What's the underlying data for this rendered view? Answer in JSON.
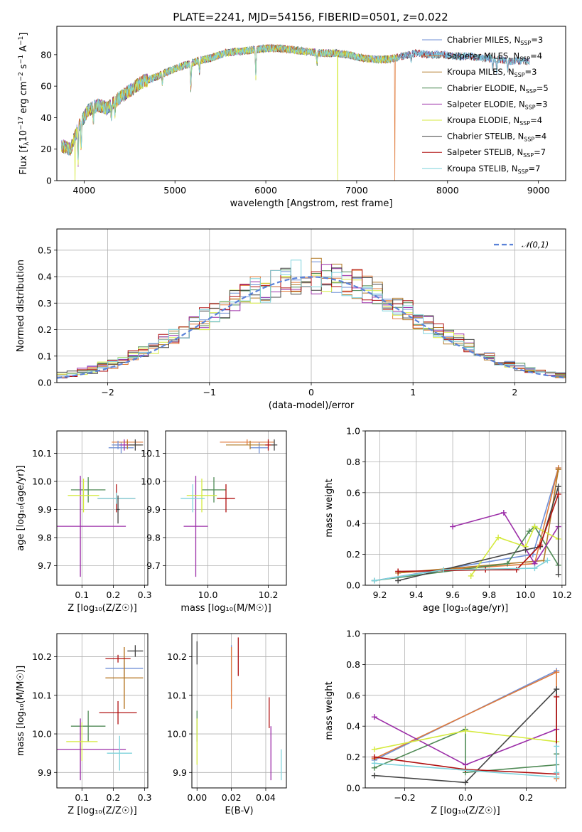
{
  "figure_title": "PLATE=2241, MJD=54156, FIBERID=0501, z=0.022",
  "models": [
    {
      "name": "Chabrier MILES",
      "nssp": "3",
      "color": "#6f8fd6"
    },
    {
      "name": "Salpeter MILES",
      "nssp": "4",
      "color": "#e07a3a"
    },
    {
      "name": "Kroupa MILES",
      "nssp": "3",
      "color": "#b37b2a"
    },
    {
      "name": "Chabrier ELODIE",
      "nssp": "5",
      "color": "#4f8a55"
    },
    {
      "name": "Salpeter ELODIE",
      "nssp": "3",
      "color": "#9c2ea8"
    },
    {
      "name": "Kroupa ELODIE",
      "nssp": "4",
      "color": "#d5ea3f"
    },
    {
      "name": "Chabrier STELIB",
      "nssp": "4",
      "color": "#444444"
    },
    {
      "name": "Salpeter STELIB",
      "nssp": "7",
      "color": "#b01010"
    },
    {
      "name": "Kroupa STELIB",
      "nssp": "7",
      "color": "#7fd3dc"
    }
  ],
  "chart_data": [
    {
      "id": "spectrum",
      "type": "line",
      "xlabel": "wavelength [Angstrom, rest frame]",
      "ylabel_pre": "Flux [f",
      "ylabel_sub1": "λ",
      "ylabel_mid": "10",
      "ylabel_sup1": "−17",
      "ylabel_post": " erg cm",
      "ylabel_sup2": "−2",
      "ylabel_post2": " s",
      "ylabel_sup3": "−1",
      "ylabel_post3": " A",
      "ylabel_sup4": "−1",
      "ylabel_end": "]",
      "xlim": [
        3700,
        9300
      ],
      "ylim": [
        0,
        98
      ],
      "xticks": [
        4000,
        5000,
        6000,
        7000,
        8000,
        9000
      ],
      "yticks": [
        0,
        20,
        40,
        60,
        80
      ],
      "continuum": {
        "x": [
          3750,
          3850,
          3950,
          4050,
          4150,
          4250,
          4350,
          4500,
          4650,
          4800,
          4950,
          5100,
          5250,
          5400,
          5550,
          5700,
          5850,
          6000,
          6150,
          6300,
          6450,
          6600,
          6750,
          6900,
          7050,
          7200,
          7350,
          7500,
          7650,
          7800,
          7950,
          8100,
          8250,
          8400,
          8550,
          8700,
          8850
        ],
        "y": [
          22,
          20,
          36,
          45,
          48,
          46,
          51,
          57,
          63,
          66,
          70,
          73,
          76,
          78,
          81,
          82,
          83,
          84,
          84,
          83,
          82,
          81,
          81,
          80,
          78,
          77,
          77,
          79,
          81,
          80,
          80,
          79,
          79,
          78,
          77,
          76,
          76
        ]
      },
      "absorption_dips": [
        {
          "x": 3934,
          "depth": 22
        },
        {
          "x": 3968,
          "depth": 18
        },
        {
          "x": 4102,
          "depth": 8
        },
        {
          "x": 4300,
          "depth": 9
        },
        {
          "x": 4340,
          "depth": 7
        },
        {
          "x": 4861,
          "depth": 6
        },
        {
          "x": 5175,
          "depth": 16
        },
        {
          "x": 5270,
          "depth": 7
        },
        {
          "x": 5890,
          "depth": 18
        },
        {
          "x": 6563,
          "depth": 7
        },
        {
          "x": 7600,
          "depth": 5
        },
        {
          "x": 8498,
          "depth": 6
        },
        {
          "x": 8542,
          "depth": 8
        },
        {
          "x": 8662,
          "depth": 7
        }
      ],
      "spikes": [
        {
          "x": 3900,
          "model": 5
        },
        {
          "x": 6790,
          "model": 5
        },
        {
          "x": 7420,
          "model": 1
        }
      ],
      "legend_loc": "upper right"
    },
    {
      "id": "residuals",
      "type": "histogram",
      "xlabel": "(data-model)/error",
      "ylabel": "Normed distribution",
      "xlim": [
        -2.5,
        2.5
      ],
      "ylim": [
        0,
        0.58
      ],
      "xticks": [
        -2,
        -1,
        0,
        1,
        2
      ],
      "yticks": [
        0.0,
        0.1,
        0.2,
        0.3,
        0.4,
        0.5
      ],
      "bin_width": 0.1,
      "reference_label": "𝒩(0,1)",
      "legend_loc": "upper right"
    },
    {
      "id": "age_vs_z",
      "type": "errorbar",
      "xlabel": "Z [log₁₀(Z/Z☉)]",
      "ylabel": "age  [log₁₀(age/yr)]",
      "xlim": [
        0.02,
        0.31
      ],
      "ylim": [
        9.63,
        10.18
      ],
      "xticks": [
        0.1,
        0.2,
        0.3
      ],
      "yticks": [
        9.7,
        9.8,
        9.9,
        10.0,
        10.1
      ],
      "points": [
        {
          "m": 0,
          "x": 0.225,
          "y": 10.12,
          "xe": 0.04,
          "ye": 0.02
        },
        {
          "m": 1,
          "x": 0.245,
          "y": 10.14,
          "xe": 0.05,
          "ye": 0.01
        },
        {
          "m": 2,
          "x": 0.245,
          "y": 10.13,
          "xe": 0.045,
          "ye": 0.015
        },
        {
          "m": 3,
          "x": 0.12,
          "y": 9.97,
          "xe": 0.055,
          "ye": 0.045
        },
        {
          "m": 4,
          "x": 0.095,
          "y": 9.84,
          "xe": 0.145,
          "ye": 0.18
        },
        {
          "m": 5,
          "x": 0.105,
          "y": 9.95,
          "xe": 0.05,
          "ye": 0.06
        },
        {
          "m": 6,
          "x": 0.27,
          "y": 10.13,
          "xe": 0.025,
          "ye": 0.02
        },
        {
          "m": 7,
          "x": 0.21,
          "y": 9.94,
          "xe": 0.06,
          "ye": 0.05
        },
        {
          "m": 8,
          "x": 0.21,
          "y": 9.94,
          "xe": 0.06,
          "ye": 0.02
        },
        {
          "m": 0,
          "x": 0.215,
          "y": 10.13,
          "xe": 0.02,
          "ye": 0.015
        },
        {
          "m": 4,
          "x": 0.235,
          "y": 10.13,
          "xe": 0.015,
          "ye": 0.02
        },
        {
          "m": 6,
          "x": 0.215,
          "y": 9.9,
          "xe": 0.005,
          "ye": 0.05
        }
      ]
    },
    {
      "id": "age_vs_mass",
      "type": "errorbar",
      "xlabel": "mass [log₁₀(M/M☉)]",
      "ylabel": "",
      "xlim": [
        9.86,
        10.26
      ],
      "ylim": [
        9.63,
        10.18
      ],
      "xticks": [
        10.0,
        10.2
      ],
      "yticks": [
        9.7,
        9.8,
        9.9,
        10.0,
        10.1
      ],
      "points": [
        {
          "m": 0,
          "x": 10.17,
          "y": 10.12,
          "xe": 0.03,
          "ye": 0.02
        },
        {
          "m": 1,
          "x": 10.13,
          "y": 10.14,
          "xe": 0.09,
          "ye": 0.01
        },
        {
          "m": 2,
          "x": 10.14,
          "y": 10.13,
          "xe": 0.08,
          "ye": 0.015
        },
        {
          "m": 3,
          "x": 10.02,
          "y": 9.97,
          "xe": 0.04,
          "ye": 0.045
        },
        {
          "m": 4,
          "x": 9.96,
          "y": 9.84,
          "xe": 0.04,
          "ye": 0.18
        },
        {
          "m": 5,
          "x": 9.98,
          "y": 9.95,
          "xe": 0.05,
          "ye": 0.06
        },
        {
          "m": 6,
          "x": 10.22,
          "y": 10.13,
          "xe": 0.01,
          "ye": 0.02
        },
        {
          "m": 7,
          "x": 10.06,
          "y": 9.94,
          "xe": 0.03,
          "ye": 0.05
        },
        {
          "m": 8,
          "x": 9.95,
          "y": 9.94,
          "xe": 0.04,
          "ye": 0.05
        },
        {
          "m": 7,
          "x": 10.2,
          "y": 10.13,
          "xe": 0.01,
          "ye": 0.02
        }
      ]
    },
    {
      "id": "mass_weight_vs_age",
      "type": "line",
      "xlabel": "age  [log₁₀(age/yr)]",
      "ylabel": "mass weight",
      "xlim": [
        9.12,
        10.22
      ],
      "ylim": [
        0,
        1
      ],
      "xticks": [
        9.2,
        9.4,
        9.6,
        9.8,
        10.0,
        10.2
      ],
      "yticks": [
        0.0,
        0.2,
        0.4,
        0.6,
        0.8,
        1.0
      ],
      "series": [
        {
          "m": 0,
          "x": [
            9.17,
            10.04,
            10.18
          ],
          "y": [
            0.03,
            0.2,
            0.76
          ]
        },
        {
          "m": 1,
          "x": [
            9.3,
            10.05,
            10.18
          ],
          "y": [
            0.08,
            0.14,
            0.76
          ]
        },
        {
          "m": 2,
          "x": [
            9.3,
            10.1,
            10.18
          ],
          "y": [
            0.08,
            0.16,
            0.75
          ]
        },
        {
          "m": 3,
          "x": [
            9.17,
            9.9,
            10.02,
            10.05,
            10.18
          ],
          "y": [
            0.03,
            0.14,
            0.35,
            0.38,
            0.13
          ]
        },
        {
          "m": 4,
          "x": [
            9.6,
            9.88,
            10.05,
            10.18
          ],
          "y": [
            0.38,
            0.47,
            0.14,
            0.38
          ]
        },
        {
          "m": 5,
          "x": [
            9.7,
            9.85,
            10.0,
            10.05,
            10.18
          ],
          "y": [
            0.06,
            0.31,
            0.25,
            0.38,
            0.3
          ]
        },
        {
          "m": 6,
          "x": [
            9.3,
            10.0,
            10.08,
            10.18,
            10.18
          ],
          "y": [
            0.03,
            0.23,
            0.25,
            0.64,
            0.07
          ]
        },
        {
          "m": 7,
          "x": [
            9.3,
            9.78,
            9.95,
            10.08,
            10.18
          ],
          "y": [
            0.09,
            0.1,
            0.1,
            0.26,
            0.59
          ]
        },
        {
          "m": 8,
          "x": [
            9.17,
            9.55,
            10.05,
            10.12
          ],
          "y": [
            0.03,
            0.1,
            0.11,
            0.16
          ]
        }
      ]
    },
    {
      "id": "mass_vs_z",
      "type": "errorbar",
      "xlabel": "Z [log₁₀(Z/Z☉)]",
      "ylabel": "mass [log₁₀(M/M☉)]",
      "xlim": [
        0.02,
        0.31
      ],
      "ylim": [
        9.86,
        10.26
      ],
      "xticks": [
        0.1,
        0.2,
        0.3
      ],
      "yticks": [
        9.9,
        10.0,
        10.1,
        10.2
      ],
      "points": [
        {
          "m": 0,
          "x": 0.235,
          "y": 10.17,
          "xe": 0.06,
          "ye": 0.02
        },
        {
          "m": 1,
          "x": 0.235,
          "y": 10.145,
          "xe": 0.06,
          "ye": 0.08
        },
        {
          "m": 2,
          "x": 0.235,
          "y": 10.145,
          "xe": 0.06,
          "ye": 0.08
        },
        {
          "m": 3,
          "x": 0.12,
          "y": 10.02,
          "xe": 0.055,
          "ye": 0.04
        },
        {
          "m": 4,
          "x": 0.095,
          "y": 9.96,
          "xe": 0.145,
          "ye": 0.08
        },
        {
          "m": 5,
          "x": 0.1,
          "y": 9.98,
          "xe": 0.05,
          "ye": 0.05
        },
        {
          "m": 6,
          "x": 0.27,
          "y": 10.215,
          "xe": 0.025,
          "ye": 0.015
        },
        {
          "m": 7,
          "x": 0.215,
          "y": 10.055,
          "xe": 0.06,
          "ye": 0.03
        },
        {
          "m": 8,
          "x": 0.22,
          "y": 9.95,
          "xe": 0.04,
          "ye": 0.045
        },
        {
          "m": 7,
          "x": 0.215,
          "y": 10.195,
          "xe": 0.04,
          "ye": 0.01
        }
      ]
    },
    {
      "id": "mass_vs_ebv",
      "type": "errorbar",
      "xlabel": "E(B-V)",
      "ylabel": "",
      "xlim": [
        -0.003,
        0.052
      ],
      "ylim": [
        9.86,
        10.26
      ],
      "xticks": [
        0.0,
        0.02,
        0.04
      ],
      "yticks": [
        9.9,
        10.0,
        10.1,
        10.2
      ],
      "points": [
        {
          "m": 0,
          "x": 0.02,
          "y": 10.17,
          "xe": 0.0,
          "ye": 0.06
        },
        {
          "m": 1,
          "x": 0.02,
          "y": 10.145,
          "xe": 0.0,
          "ye": 0.08
        },
        {
          "m": 3,
          "x": 0.0,
          "y": 10.02,
          "xe": 0.0,
          "ye": 0.04
        },
        {
          "m": 4,
          "x": 0.043,
          "y": 9.95,
          "xe": 0.0,
          "ye": 0.07
        },
        {
          "m": 5,
          "x": 0.0,
          "y": 9.98,
          "xe": 0.0,
          "ye": 0.06
        },
        {
          "m": 6,
          "x": 0.0,
          "y": 10.21,
          "xe": 0.0,
          "ye": 0.03
        },
        {
          "m": 7,
          "x": 0.042,
          "y": 10.055,
          "xe": 0.0,
          "ye": 0.04
        },
        {
          "m": 8,
          "x": 0.049,
          "y": 9.92,
          "xe": 0.0,
          "ye": 0.04
        },
        {
          "m": 7,
          "x": 0.024,
          "y": 10.2,
          "xe": 0.0,
          "ye": 0.05
        }
      ]
    },
    {
      "id": "mass_weight_vs_z",
      "type": "line",
      "xlabel": "Z [log₁₀(Z/Z☉)]",
      "ylabel": "mass weight",
      "xlim": [
        -0.33,
        0.33
      ],
      "ylim": [
        0,
        1
      ],
      "xticks": [
        -0.2,
        0.0,
        0.2
      ],
      "yticks": [
        0.0,
        0.2,
        0.4,
        0.6,
        0.8,
        1.0
      ],
      "series": [
        {
          "m": 0,
          "x": [
            -0.3,
            0.3,
            0.3
          ],
          "y": [
            0.18,
            0.76,
            0.07
          ]
        },
        {
          "m": 1,
          "x": [
            -0.3,
            0.3,
            0.3
          ],
          "y": [
            0.19,
            0.75,
            0.06
          ]
        },
        {
          "m": 3,
          "x": [
            -0.3,
            0.0,
            0.0,
            0.3,
            0.3
          ],
          "y": [
            0.13,
            0.38,
            0.1,
            0.15,
            0.22
          ]
        },
        {
          "m": 4,
          "x": [
            -0.3,
            0.0,
            0.3
          ],
          "y": [
            0.46,
            0.15,
            0.38
          ]
        },
        {
          "m": 5,
          "x": [
            -0.3,
            0.0,
            0.3
          ],
          "y": [
            0.25,
            0.37,
            0.3
          ]
        },
        {
          "m": 6,
          "x": [
            -0.3,
            0.0,
            0.3,
            0.3
          ],
          "y": [
            0.08,
            0.035,
            0.64,
            0.07
          ]
        },
        {
          "m": 7,
          "x": [
            -0.3,
            0.0,
            0.3,
            0.3
          ],
          "y": [
            0.2,
            0.12,
            0.09,
            0.59
          ]
        },
        {
          "m": 8,
          "x": [
            -0.3,
            0.3,
            0.3,
            0.3
          ],
          "y": [
            0.16,
            0.07,
            0.27,
            0.1
          ]
        }
      ]
    }
  ]
}
